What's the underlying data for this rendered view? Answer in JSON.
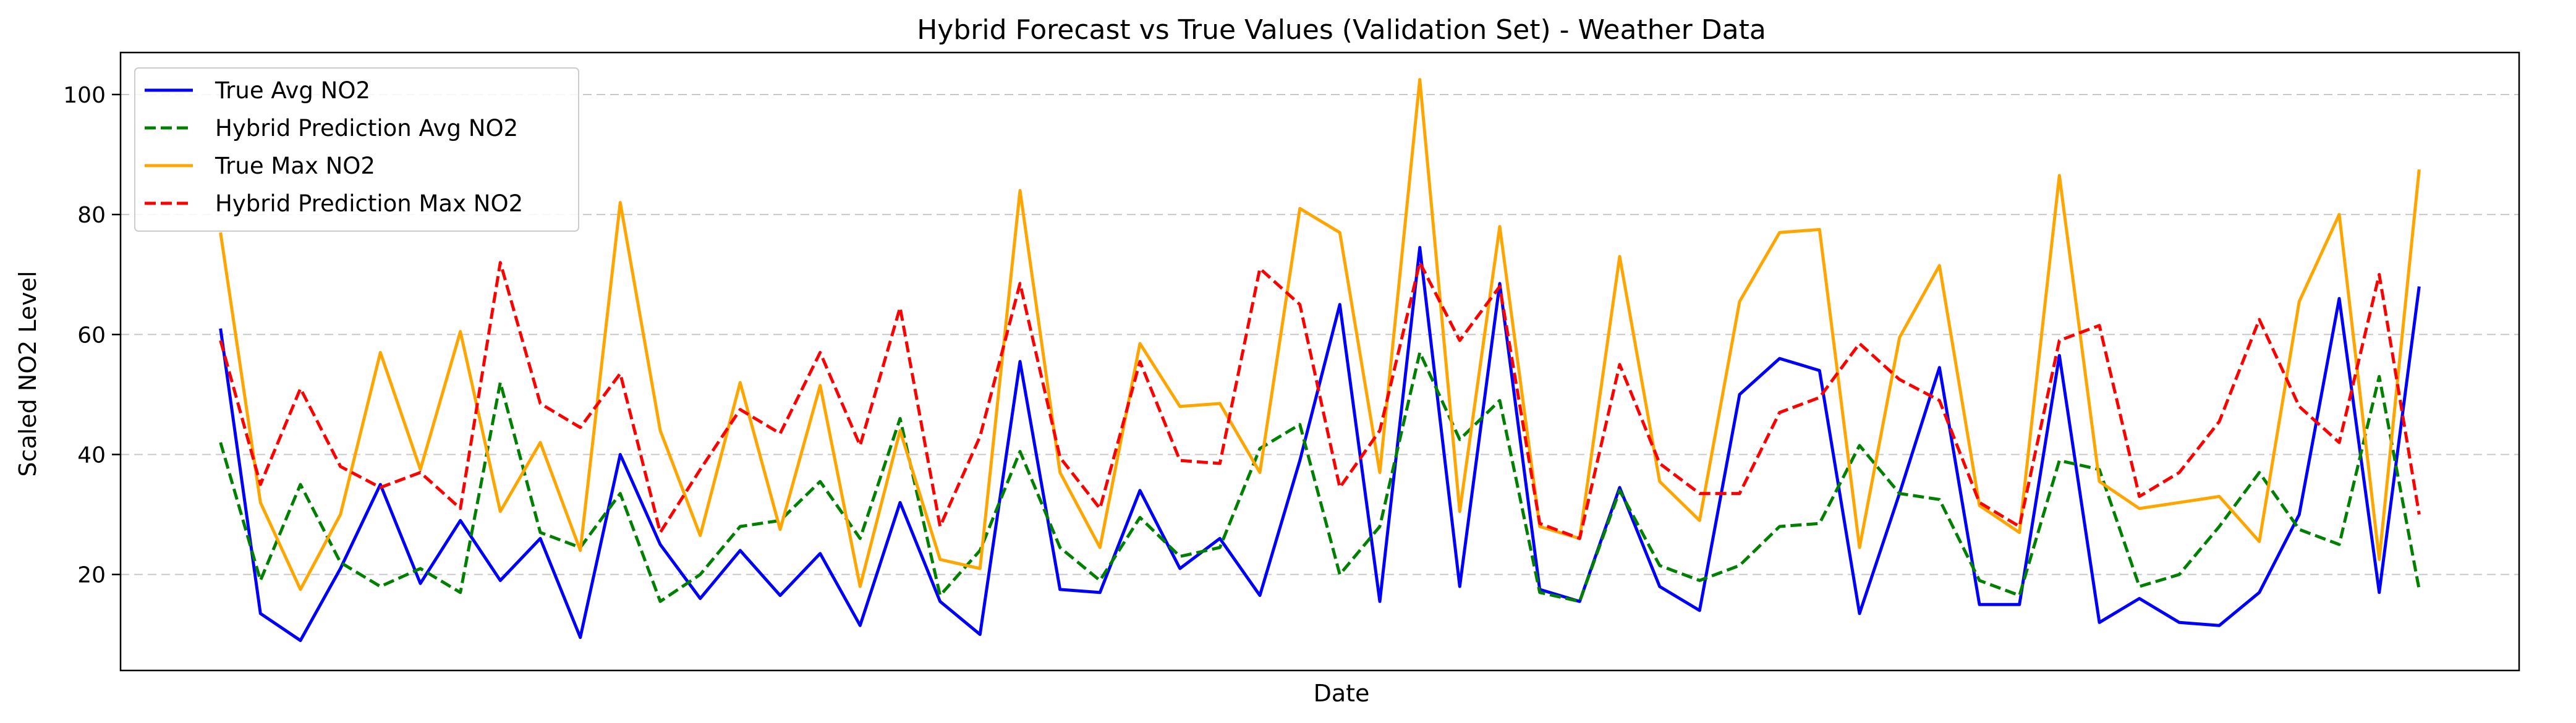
{
  "chart_data": {
    "type": "line",
    "title": "Hybrid Forecast vs True Values (Validation Set) - Weather Data",
    "xlabel": "Date",
    "ylabel": "Scaled NO2 Level",
    "ylim": [
      4,
      107
    ],
    "yticks": [
      20,
      40,
      60,
      80,
      100
    ],
    "grid": "horizontal dashed",
    "legend_position": "upper-left",
    "x": [
      0,
      1,
      2,
      3,
      4,
      5,
      6,
      7,
      8,
      9,
      10,
      11,
      12,
      13,
      14,
      15,
      16,
      17,
      18,
      19,
      20,
      21,
      22,
      23,
      24,
      25,
      26,
      27,
      28,
      29,
      30,
      31,
      32,
      33,
      34,
      35,
      36,
      37,
      38,
      39,
      40,
      41,
      42,
      43,
      44,
      45,
      46,
      47,
      48,
      49,
      50,
      51,
      52,
      53,
      54,
      55
    ],
    "series": [
      {
        "name": "True Avg NO2",
        "color": "#0000ff",
        "style": "solid",
        "values": [
          61,
          13.5,
          9,
          21,
          35,
          18.5,
          29,
          19,
          26,
          9.5,
          40,
          25,
          16,
          24,
          16.5,
          23.5,
          11.5,
          32,
          15.5,
          10,
          55.5,
          17.5,
          17,
          34,
          21,
          26,
          16.5,
          39,
          65,
          15.5,
          74.5,
          18,
          68.5,
          17.5,
          15.5,
          34.5,
          18,
          14,
          50,
          56,
          54,
          13.5,
          33.5,
          54.5,
          15,
          15,
          56.5,
          12,
          16,
          12,
          11.5,
          17,
          30,
          66,
          17,
          68
        ]
      },
      {
        "name": "Hybrid Prediction Avg NO2",
        "color": "#008000",
        "style": "dashed",
        "values": [
          42,
          19,
          35,
          22,
          18,
          21,
          17,
          52,
          27,
          24.5,
          33.5,
          15.5,
          20,
          28,
          29,
          35.5,
          26,
          46,
          16.5,
          24,
          40.5,
          24.5,
          19,
          29.5,
          23,
          24.5,
          41,
          45,
          20,
          28,
          57,
          42.5,
          49,
          17,
          15.5,
          34,
          21.5,
          19,
          21.5,
          28,
          28.5,
          41.5,
          33.5,
          32.5,
          19,
          16.5,
          39,
          37.5,
          18,
          20,
          28,
          37,
          27.5,
          25,
          53,
          17.5
        ]
      },
      {
        "name": "True Max NO2",
        "color": "#ffa500",
        "style": "solid",
        "values": [
          77,
          32,
          17.5,
          30,
          57,
          37.5,
          60.5,
          30.5,
          42,
          24,
          82,
          44,
          26.5,
          52,
          27.5,
          51.5,
          18,
          44,
          22.5,
          21,
          84,
          37,
          24.5,
          58.5,
          48,
          48.5,
          37,
          81,
          77,
          37,
          102.5,
          30.5,
          78,
          28,
          26,
          73,
          35.5,
          29,
          65.5,
          77,
          77.5,
          24.5,
          59.5,
          71.5,
          31.5,
          27,
          86.5,
          35.5,
          31,
          32,
          33,
          25.5,
          65.5,
          80,
          22.5,
          87.5
        ]
      },
      {
        "name": "Hybrid Prediction Max NO2",
        "color": "#ff0000",
        "style": "dashed",
        "values": [
          59,
          35,
          51,
          38,
          34.5,
          37,
          31,
          72,
          48.5,
          44.5,
          53.5,
          27,
          37.5,
          47.5,
          43.5,
          57,
          41.5,
          64.5,
          28,
          43,
          68.5,
          39.5,
          31,
          55.5,
          39,
          38.5,
          71,
          65,
          34.5,
          44,
          72,
          59,
          68,
          28.5,
          26,
          55,
          38.5,
          33.5,
          33.5,
          47,
          49.5,
          58.5,
          52.5,
          49,
          32,
          28,
          59,
          61.5,
          33,
          37,
          45.5,
          62.5,
          48,
          42,
          70,
          30
        ]
      }
    ]
  }
}
